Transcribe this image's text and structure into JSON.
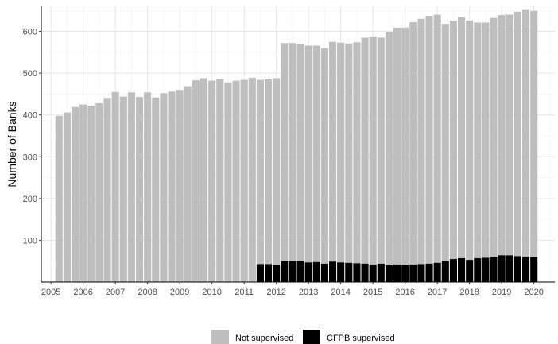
{
  "chart_data": {
    "type": "bar",
    "stacked": true,
    "xlabel": "",
    "ylabel": "Number of Banks",
    "x_range": [
      2004.7,
      2020.65
    ],
    "y_range": [
      0,
      660
    ],
    "x_ticks": [
      2005,
      2006,
      2007,
      2008,
      2009,
      2010,
      2011,
      2012,
      2013,
      2014,
      2015,
      2016,
      2017,
      2018,
      2019,
      2020
    ],
    "y_ticks": [
      100,
      200,
      300,
      400,
      500,
      600
    ],
    "grid": true,
    "legend_position": "bottom",
    "colors": {
      "not_supervised": "#bebebe",
      "cfpb_supervised": "#000000"
    },
    "x": [
      2005.25,
      2005.5,
      2005.75,
      2006,
      2006.25,
      2006.5,
      2006.75,
      2007,
      2007.25,
      2007.5,
      2007.75,
      2008,
      2008.25,
      2008.5,
      2008.75,
      2009,
      2009.25,
      2009.5,
      2009.75,
      2010,
      2010.25,
      2010.5,
      2010.75,
      2011,
      2011.25,
      2011.5,
      2011.75,
      2012,
      2012.25,
      2012.5,
      2012.75,
      2013,
      2013.25,
      2013.5,
      2013.75,
      2014,
      2014.25,
      2014.5,
      2014.75,
      2015,
      2015.25,
      2015.5,
      2015.75,
      2016,
      2016.25,
      2016.5,
      2016.75,
      2017,
      2017.25,
      2017.5,
      2017.75,
      2018,
      2018.25,
      2018.5,
      2018.75,
      2019,
      2019.25,
      2019.5,
      2019.75,
      2020
    ],
    "series": [
      {
        "name": "CFPB supervised",
        "values": [
          0,
          0,
          0,
          0,
          0,
          0,
          0,
          0,
          0,
          0,
          0,
          0,
          0,
          0,
          0,
          0,
          0,
          0,
          0,
          0,
          0,
          0,
          0,
          0,
          0,
          43,
          43,
          40,
          50,
          50,
          50,
          47,
          48,
          44,
          49,
          47,
          46,
          45,
          44,
          42,
          44,
          40,
          42,
          41,
          42,
          43,
          44,
          46,
          51,
          55,
          57,
          53,
          57,
          58,
          60,
          64,
          64,
          62,
          61,
          60
        ]
      },
      {
        "name": "Not supervised",
        "values": [
          398,
          406,
          419,
          425,
          422,
          428,
          441,
          455,
          444,
          454,
          443,
          454,
          442,
          452,
          456,
          460,
          469,
          483,
          488,
          482,
          487,
          478,
          482,
          484,
          489,
          441,
          442,
          448,
          522,
          522,
          520,
          519,
          518,
          516,
          526,
          526,
          525,
          529,
          541,
          546,
          541,
          559,
          567,
          568,
          580,
          587,
          593,
          594,
          567,
          570,
          577,
          573,
          564,
          563,
          572,
          575,
          576,
          585,
          592,
          589
        ]
      }
    ],
    "legend": [
      "Not supervised",
      "CFPB supervised"
    ]
  }
}
